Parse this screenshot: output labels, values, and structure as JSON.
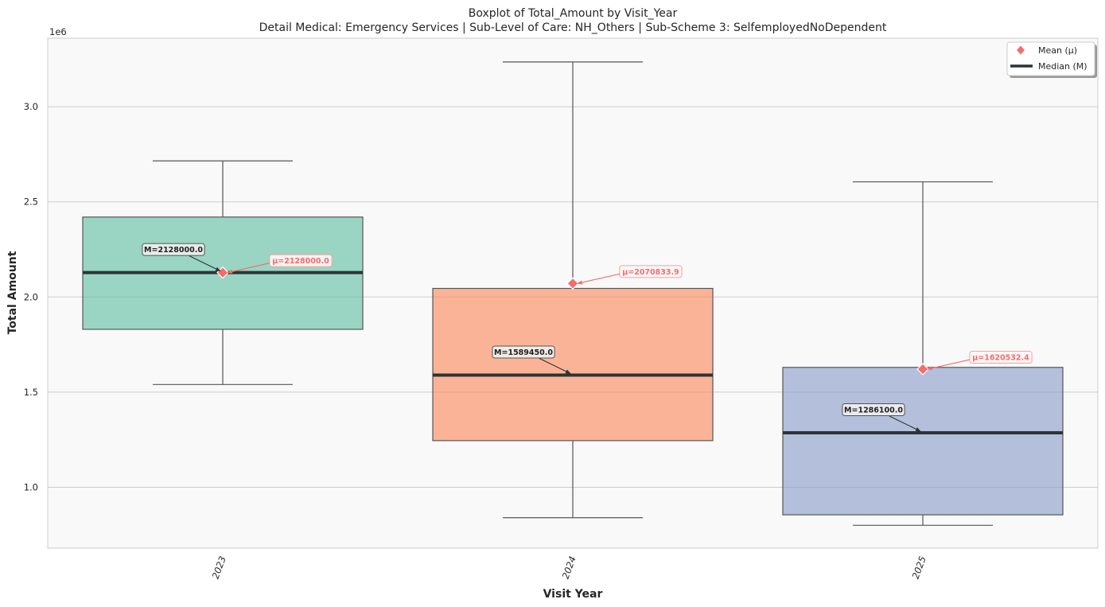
{
  "chart_data": {
    "type": "box",
    "title": "Boxplot of Total_Amount by Visit_Year",
    "subtitle": "Detail Medical: Emergency Services | Sub-Level of Care: NH_Others | Sub-Scheme 3: SelfemployedNoDependent",
    "xlabel": "Visit Year",
    "ylabel": "Total Amount",
    "y_offset_label": "1e6",
    "ylim": [
      680000,
      3360000
    ],
    "y_ticks": [
      1000000,
      1500000,
      2000000,
      2500000,
      3000000
    ],
    "y_tick_labels": [
      "1.0",
      "1.5",
      "2.0",
      "2.5",
      "3.0"
    ],
    "grid": true,
    "legend_position": "top-right",
    "legend": [
      {
        "label": "Mean (μ)",
        "marker": "diamond",
        "color": "#f46d6d"
      },
      {
        "label": "Median (M)",
        "marker": "line",
        "color": "#2d3436"
      }
    ],
    "categories": [
      "2023",
      "2024",
      "2025"
    ],
    "boxes": [
      {
        "category": "2023",
        "whisker_low": 1540000,
        "q1": 1830000,
        "median": 2128000,
        "q3": 2420000,
        "whisker_high": 2715000,
        "mean": 2128000,
        "median_label": "M=2128000.0",
        "mean_label": "μ=2128000.0",
        "color": "#66c2a5"
      },
      {
        "category": "2024",
        "whisker_low": 840000,
        "q1": 1245000,
        "median": 1589450,
        "q3": 2045000,
        "whisker_high": 3235000,
        "mean": 2070833.9,
        "median_label": "M=1589450.0",
        "mean_label": "μ=2070833.9",
        "color": "#fc8d62"
      },
      {
        "category": "2025",
        "whisker_low": 800000,
        "q1": 855000,
        "median": 1286100,
        "q3": 1630000,
        "whisker_high": 2605000,
        "mean": 1620532.4,
        "median_label": "M=1286100.0",
        "mean_label": "μ=1620532.4",
        "color": "#8da0cb"
      }
    ]
  }
}
